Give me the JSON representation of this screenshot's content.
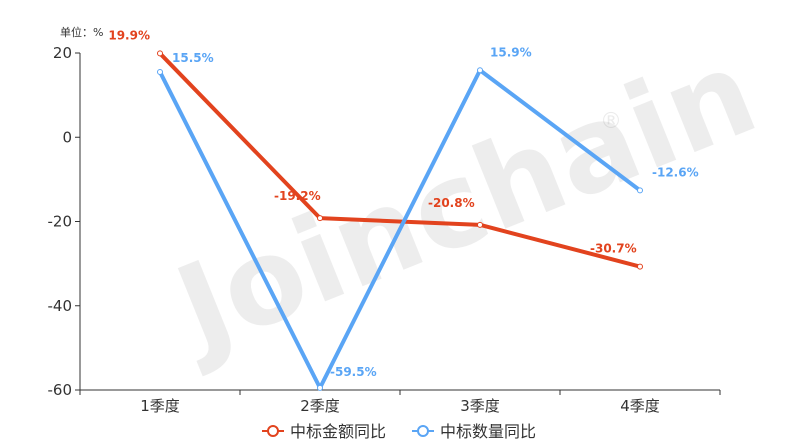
{
  "chart_data": {
    "type": "line",
    "unit_label": "单位：%",
    "categories": [
      "1季度",
      "2季度",
      "3季度",
      "4季度"
    ],
    "ylim": [
      -60,
      20
    ],
    "yticks": [
      20,
      0,
      -20,
      -40,
      -60
    ],
    "grid": false,
    "legend_position": "bottom-center",
    "series": [
      {
        "name": "中标金额同比",
        "color": "#e2431e",
        "values": [
          19.9,
          -19.2,
          -20.8,
          -30.7
        ],
        "labels": [
          "19.9%",
          "-19.2%",
          "-20.8%",
          "-30.7%"
        ]
      },
      {
        "name": "中标数量同比",
        "color": "#5aa5f5",
        "values": [
          15.5,
          -59.5,
          15.9,
          -12.6
        ],
        "labels": [
          "15.5%",
          "-59.5%",
          "15.9%",
          "-12.6%"
        ]
      }
    ]
  },
  "watermark": {
    "text": "Joinchain",
    "registered_mark": "®"
  }
}
